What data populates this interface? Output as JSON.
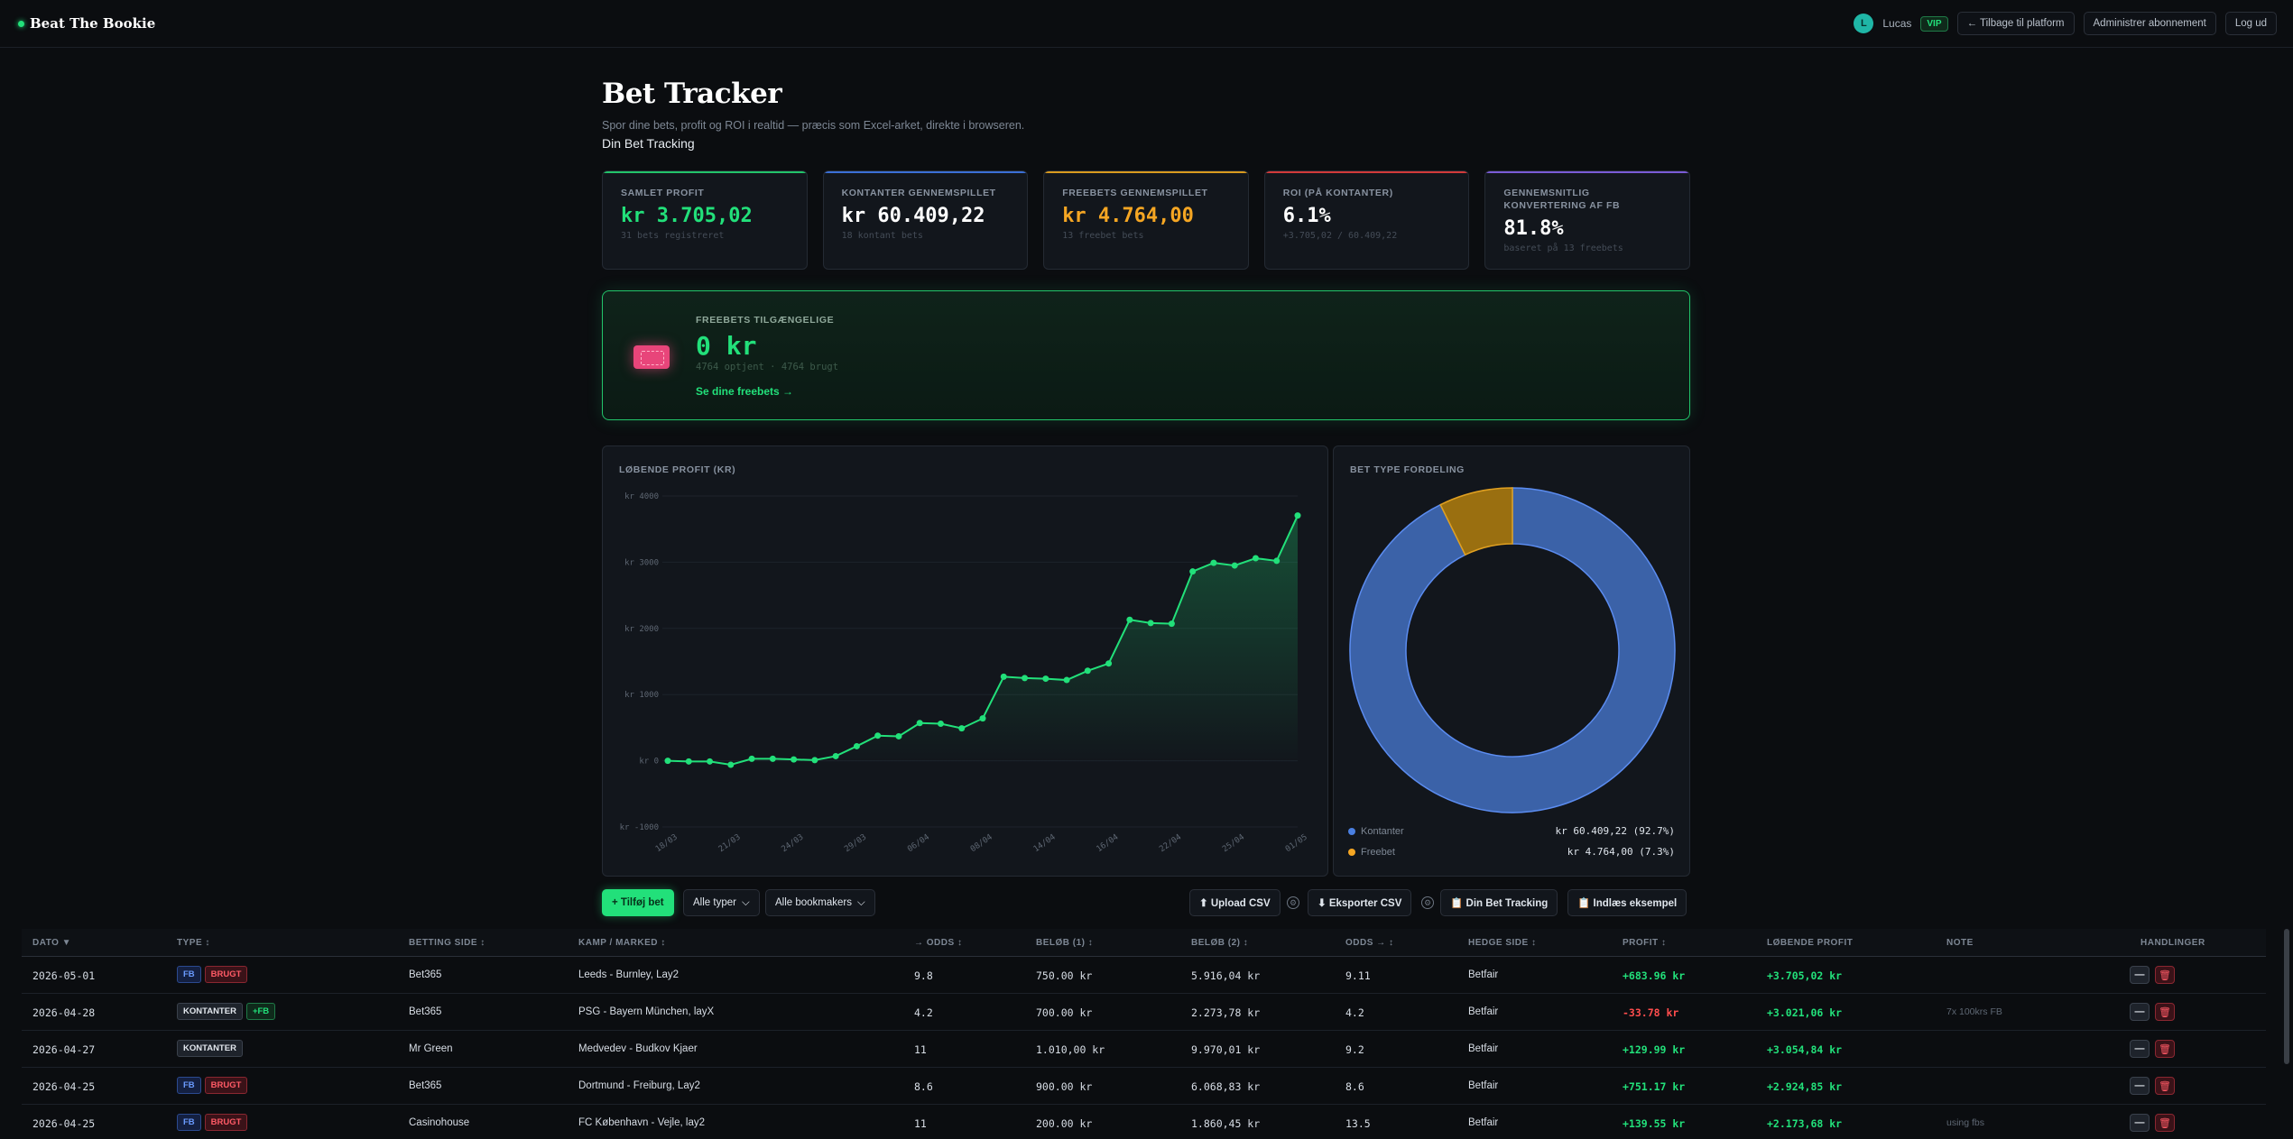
{
  "brand": "Beat The Bookie",
  "nav": {
    "avatar_letter": "L",
    "user": "Lucas",
    "vip": "VIP",
    "back": "← Tilbage til platform",
    "manage": "Administrer abonnement",
    "logout": "Log ud"
  },
  "header": {
    "title": "Bet Tracker",
    "subtitle": "Spor dine bets, profit og ROI i realtid — præcis som Excel-arket, direkte i browseren.",
    "subheading": "Din Bet Tracking"
  },
  "stats": [
    {
      "label": "SAMLET PROFIT",
      "value": "kr 3.705,02",
      "sub": "31 bets registreret",
      "color": "#22e07a",
      "bar": "#22c46a"
    },
    {
      "label": "KONTANTER GENNEMSPILLET",
      "value": "kr 60.409,22",
      "sub": "18 kontant bets",
      "color": "#ffffff",
      "bar": "#3b6fd6"
    },
    {
      "label": "FREEBETS GENNEMSPILLET",
      "value": "kr 4.764,00",
      "sub": "13 freebet bets",
      "color": "#f5a623",
      "bar": "#d99a1e"
    },
    {
      "label": "ROI (PÅ KONTANTER)",
      "value": "6.1%",
      "sub": "+3.705,02 / 60.409,22",
      "color": "#ffffff",
      "bar": "#d23a3a"
    },
    {
      "label": "GENNEMSNITLIG KONVERTERING AF FB",
      "value": "81.8%",
      "sub": "baseret på 13 freebets",
      "color": "#ffffff",
      "bar": "#7a5bd6"
    }
  ],
  "freebets": {
    "label": "FREEBETS TILGÆNGELIGE",
    "value": "0 kr",
    "sub": "4764 optjent · 4764 brugt",
    "link": "Se dine freebets →"
  },
  "line_panel_label": "LØBENDE PROFIT (KR)",
  "donut_panel_label": "BET TYPE FORDELING",
  "chart_data": [
    {
      "type": "line",
      "title": "LØBENDE PROFIT (KR)",
      "ylim": [
        -1000,
        4000
      ],
      "yticks": [
        "kr -1000",
        "kr 0",
        "kr 1000",
        "kr 2000",
        "kr 3000",
        "kr 4000"
      ],
      "ytick_values": [
        -1000,
        0,
        1000,
        2000,
        3000,
        4000
      ],
      "xticks": [
        "18/03",
        "21/03",
        "24/03",
        "29/03",
        "06/04",
        "08/04",
        "14/04",
        "16/04",
        "22/04",
        "25/04",
        "01/05"
      ],
      "values": [
        0,
        -10,
        -10,
        -60,
        30,
        30,
        20,
        10,
        70,
        220,
        380,
        370,
        570,
        560,
        490,
        640,
        1270,
        1250,
        1240,
        1220,
        1360,
        1470,
        2130,
        2080,
        2070,
        2860,
        2990,
        2950,
        3060,
        3020,
        3705
      ]
    },
    {
      "type": "pie",
      "title": "BET TYPE FORDELING",
      "categories": [
        "Kontanter",
        "Freebet"
      ],
      "values": [
        60409.22,
        4764.0
      ],
      "labels": [
        "kr 60.409,22 (92.7%)",
        "kr 4.764,00 (7.3%)"
      ],
      "colors": [
        "#3b62a8",
        "#9a6f10"
      ]
    }
  ],
  "toolbar": {
    "add": "+ Tilføj bet",
    "types": "Alle typer",
    "bookmakers": "Alle bookmakers",
    "upload": "⬆ Upload CSV",
    "export": "⬇ Eksporter CSV",
    "tracking": "📋 Din Bet Tracking",
    "example": "📋 Indlæs eksempel"
  },
  "table": {
    "headers": [
      "DATO ▼",
      "TYPE ↕",
      "BETTING SIDE ↕",
      "KAMP / MARKED ↕",
      "→ ODDS ↕",
      "BELØB (1) ↕",
      "BELØB (2) ↕",
      "ODDS → ↕",
      "HEDGE SIDE ↕",
      "PROFIT ↕",
      "LØBENDE PROFIT",
      "NOTE",
      "HANDLINGER"
    ],
    "rows": [
      {
        "date": "2026-05-01",
        "badges": [
          "FB",
          "BRUGT"
        ],
        "side": "Bet365",
        "match": "Leeds - Burnley, Lay2",
        "odds1": "9.8",
        "amt1": "750.00 kr",
        "amt2": "5.916,04 kr",
        "odds2": "9.11",
        "hedge": "Betfair",
        "profit": "+683.96 kr",
        "running": "+3.705,02 kr",
        "note": ""
      },
      {
        "date": "2026-04-28",
        "badges": [
          "KONTANTER",
          "+FB"
        ],
        "side": "Bet365",
        "match": "PSG - Bayern München, layX",
        "odds1": "4.2",
        "amt1": "700.00 kr",
        "amt2": "2.273,78 kr",
        "odds2": "4.2",
        "hedge": "Betfair",
        "profit": "-33.78 kr",
        "running": "+3.021,06 kr",
        "note": "7x 100krs FB"
      },
      {
        "date": "2026-04-27",
        "badges": [
          "KONTANTER"
        ],
        "side": "Mr Green",
        "match": "Medvedev - Budkov Kjaer",
        "odds1": "11",
        "amt1": "1.010,00 kr",
        "amt2": "9.970,01 kr",
        "odds2": "9.2",
        "hedge": "Betfair",
        "profit": "+129.99 kr",
        "running": "+3.054,84 kr",
        "note": ""
      },
      {
        "date": "2026-04-25",
        "badges": [
          "FB",
          "BRUGT"
        ],
        "side": "Bet365",
        "match": "Dortmund - Freiburg, Lay2",
        "odds1": "8.6",
        "amt1": "900.00 kr",
        "amt2": "6.068,83 kr",
        "odds2": "8.6",
        "hedge": "Betfair",
        "profit": "+751.17 kr",
        "running": "+2.924,85 kr",
        "note": ""
      },
      {
        "date": "2026-04-25",
        "badges": [
          "FB",
          "BRUGT"
        ],
        "side": "Casinohouse",
        "match": "FC København - Vejle, lay2",
        "odds1": "11",
        "amt1": "200.00 kr",
        "amt2": "1.860,45 kr",
        "odds2": "13.5",
        "hedge": "Betfair",
        "profit": "+139.55 kr",
        "running": "+2.173,68 kr",
        "note": "using fbs"
      }
    ]
  }
}
